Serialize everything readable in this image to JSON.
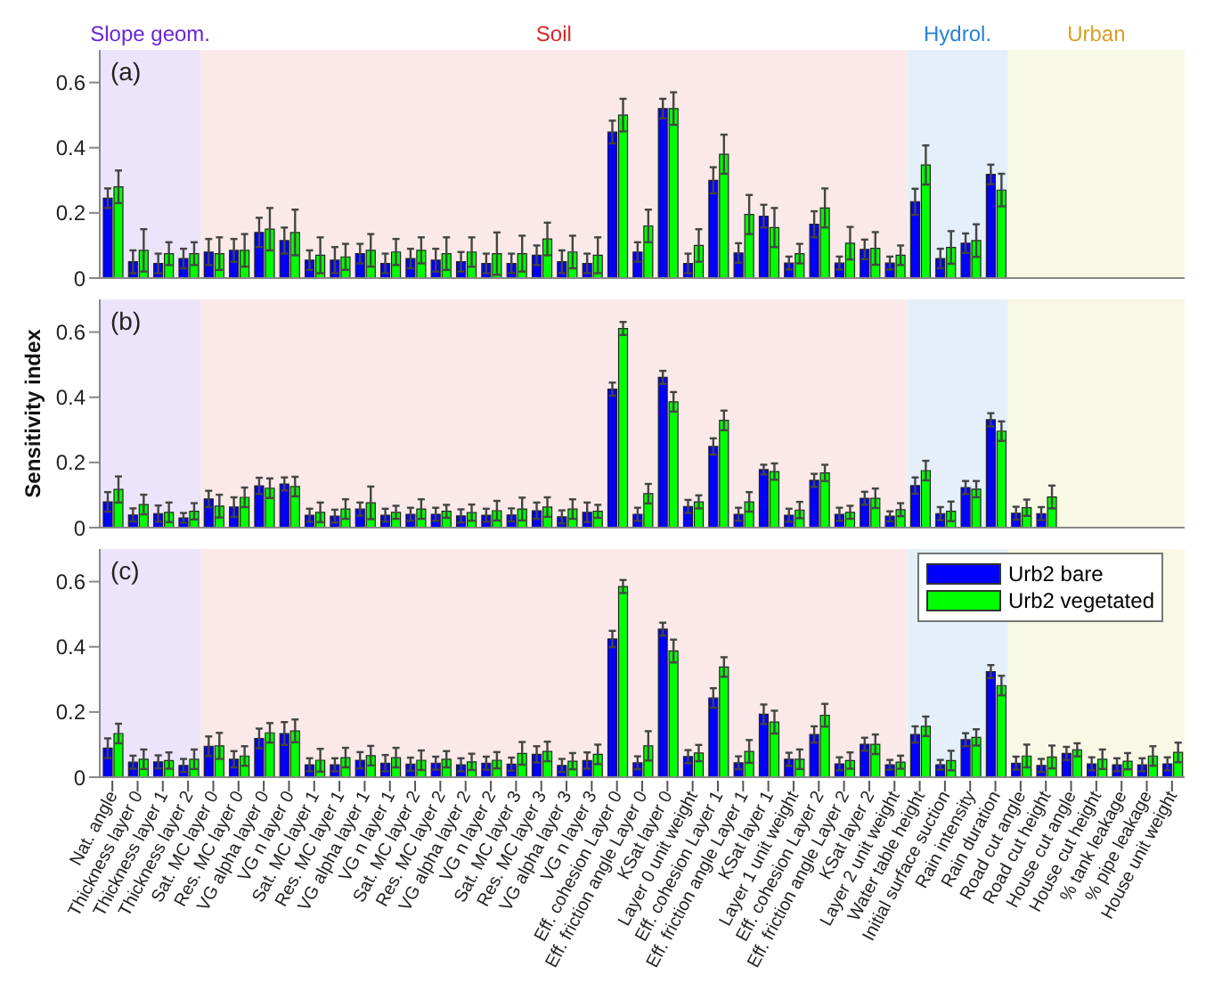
{
  "chart_data": [
    {
      "type": "bar",
      "title": "(a)",
      "categories": [
        "Nat. angle",
        "Thickness layer 0",
        "Thickness layer 1",
        "Thickness layer 2",
        "Sat. MC layer 0",
        "Res. MC layer 0",
        "VG alpha layer 0",
        "VG n layer 0",
        "Sat. MC layer 1",
        "Res. MC layer 1",
        "VG alpha layer 1",
        "VG n layer 1",
        "Sat. MC layer 2",
        "Res. MC layer 2",
        "VG alpha layer 2",
        "VG n layer 2",
        "Sat. MC layer 3",
        "Res. MC layer 3",
        "VG alpha layer 3",
        "VG n layer 3",
        "Eff. cohesion Layer 0",
        "Eff. friction angle Layer 0",
        "KSat layer 0",
        "Layer 0 unit weight",
        "Eff. cohesion Layer 1",
        "Eff. friction angle Layer 1",
        "KSat layer 1",
        "Layer 1 unit weight",
        "Eff. cohesion Layer 2",
        "Eff. friction angle Layer 2",
        "KSat layer 2",
        "Layer 2 unit weight",
        "Water table height",
        "Initial surface suction",
        "Rain intensity",
        "Rain duration",
        "Road cut angle",
        "Road cut height",
        "House cut angle",
        "House cut height",
        "% tank leakage",
        "% pipe leakage",
        "House unit weight"
      ],
      "series": [
        {
          "color": "#0000ff",
          "values": [
            0.245,
            0.05,
            0.045,
            0.06,
            0.08,
            0.085,
            0.14,
            0.115,
            0.055,
            0.055,
            0.075,
            0.045,
            0.06,
            0.055,
            0.05,
            0.045,
            0.045,
            0.07,
            0.05,
            0.045,
            0.448,
            0.08,
            0.52,
            0.045,
            0.3,
            0.077,
            0.19,
            0.046,
            0.165,
            0.046,
            0.088,
            0.046,
            0.234,
            0.06,
            0.107,
            0.318,
            0,
            0,
            0,
            0,
            0,
            0,
            0
          ],
          "errors": [
            0.03,
            0.035,
            0.03,
            0.03,
            0.04,
            0.035,
            0.045,
            0.04,
            0.03,
            0.04,
            0.03,
            0.03,
            0.03,
            0.035,
            0.03,
            0.03,
            0.03,
            0.03,
            0.035,
            0.03,
            0.035,
            0.03,
            0.03,
            0.03,
            0.04,
            0.03,
            0.035,
            0.02,
            0.04,
            0.02,
            0.03,
            0.02,
            0.04,
            0.03,
            0.03,
            0.03,
            null,
            null,
            null,
            null,
            null,
            null,
            null
          ]
        },
        {
          "color": "#00ff00",
          "values": [
            0.28,
            0.085,
            0.075,
            0.075,
            0.075,
            0.085,
            0.15,
            0.14,
            0.07,
            0.065,
            0.085,
            0.08,
            0.085,
            0.075,
            0.08,
            0.075,
            0.075,
            0.12,
            0.08,
            0.07,
            0.5,
            0.16,
            0.52,
            0.1,
            0.38,
            0.195,
            0.155,
            0.075,
            0.215,
            0.107,
            0.091,
            0.07,
            0.347,
            0.094,
            0.115,
            0.27,
            0,
            0,
            0,
            0,
            0,
            0,
            0
          ],
          "errors": [
            0.05,
            0.065,
            0.035,
            0.035,
            0.05,
            0.05,
            0.065,
            0.07,
            0.055,
            0.04,
            0.05,
            0.04,
            0.04,
            0.05,
            0.045,
            0.065,
            0.055,
            0.05,
            0.05,
            0.055,
            0.05,
            0.05,
            0.05,
            0.05,
            0.06,
            0.06,
            0.06,
            0.03,
            0.06,
            0.05,
            0.05,
            0.03,
            0.06,
            0.05,
            0.05,
            0.05,
            null,
            null,
            null,
            null,
            null,
            null,
            null
          ]
        }
      ],
      "bands": [
        {
          "axis": "x",
          "from": "Nat. angle",
          "to": "Thickness layer 2",
          "label": "Slope geom.",
          "color": "#ece4fa"
        },
        {
          "axis": "x",
          "from": "Sat. MC layer 0",
          "to": "Layer 2 unit weight",
          "label": "Soil",
          "color": "#fbe9e9"
        },
        {
          "axis": "x",
          "from": "Water table height",
          "to": "Rain duration",
          "label": "Hydrol.",
          "color": "#e4eff9"
        },
        {
          "axis": "x",
          "from": "Road cut angle",
          "to": "House unit weight",
          "label": "Urban",
          "color": "#f8f8e4"
        }
      ],
      "ylim": [
        0,
        0.7
      ],
      "yticks": [
        0,
        0.2,
        0.4,
        0.6
      ],
      "tick_labels": "y"
    },
    {
      "type": "bar",
      "title": "(b)",
      "ylabel": "Sensitivity index",
      "categories": [
        "Nat. angle",
        "Thickness layer 0",
        "Thickness layer 1",
        "Thickness layer 2",
        "Sat. MC layer 0",
        "Res. MC layer 0",
        "VG alpha layer 0",
        "VG n layer 0",
        "Sat. MC layer 1",
        "Res. MC layer 1",
        "VG alpha layer 1",
        "VG n layer 1",
        "Sat. MC layer 2",
        "Res. MC layer 2",
        "VG alpha layer 2",
        "VG n layer 2",
        "Sat. MC layer 3",
        "Res. MC layer 3",
        "VG alpha layer 3",
        "VG n layer 3",
        "Eff. cohesion Layer 0",
        "Eff. friction angle Layer 0",
        "KSat layer 0",
        "Layer 0 unit weight",
        "Eff. cohesion Layer 1",
        "Eff. friction angle Layer 1",
        "KSat layer 1",
        "Layer 1 unit weight",
        "Eff. cohesion Layer 2",
        "Eff. friction angle Layer 2",
        "KSat layer 2",
        "Layer 2 unit weight",
        "Water table height",
        "Initial surface suction",
        "Rain intensity",
        "Rain duration",
        "Road cut angle",
        "Road cut height",
        "House cut angle",
        "House cut height",
        "% tank leakage",
        "% pipe leakage",
        "House unit weight"
      ],
      "series": [
        {
          "color": "#0000ff",
          "values": [
            0.079,
            0.039,
            0.043,
            0.03,
            0.088,
            0.063,
            0.128,
            0.134,
            0.038,
            0.035,
            0.057,
            0.038,
            0.041,
            0.041,
            0.036,
            0.038,
            0.039,
            0.052,
            0.033,
            0.047,
            0.425,
            0.041,
            0.461,
            0.065,
            0.249,
            0.041,
            0.178,
            0.038,
            0.145,
            0.041,
            0.09,
            0.035,
            0.129,
            0.043,
            0.123,
            0.331,
            0.044,
            0.043,
            0,
            0,
            0,
            0,
            0
          ],
          "errors": [
            0.03,
            0.02,
            0.025,
            0.015,
            0.025,
            0.03,
            0.025,
            0.02,
            0.02,
            0.02,
            0.02,
            0.02,
            0.02,
            0.02,
            0.02,
            0.02,
            0.02,
            0.025,
            0.02,
            0.03,
            0.02,
            0.02,
            0.02,
            0.02,
            0.025,
            0.02,
            0.015,
            0.02,
            0.02,
            0.02,
            0.02,
            0.015,
            0.025,
            0.02,
            0.02,
            0.02,
            0.02,
            0.02,
            null,
            null,
            null,
            null,
            null
          ]
        },
        {
          "color": "#00ff00",
          "values": [
            0.117,
            0.071,
            0.047,
            0.05,
            0.066,
            0.093,
            0.121,
            0.126,
            0.047,
            0.057,
            0.076,
            0.047,
            0.057,
            0.05,
            0.046,
            0.052,
            0.057,
            0.063,
            0.057,
            0.05,
            0.611,
            0.104,
            0.386,
            0.079,
            0.329,
            0.079,
            0.172,
            0.054,
            0.168,
            0.047,
            0.09,
            0.055,
            0.175,
            0.05,
            0.118,
            0.296,
            0.061,
            0.094,
            0,
            0,
            0,
            0,
            0
          ],
          "errors": [
            0.04,
            0.03,
            0.03,
            0.025,
            0.035,
            0.03,
            0.03,
            0.03,
            0.03,
            0.03,
            0.05,
            0.02,
            0.03,
            0.02,
            0.025,
            0.03,
            0.035,
            0.03,
            0.03,
            0.02,
            0.02,
            0.03,
            0.03,
            0.02,
            0.03,
            0.03,
            0.025,
            0.025,
            0.025,
            0.02,
            0.03,
            0.02,
            0.03,
            0.03,
            0.025,
            0.03,
            0.025,
            0.035,
            null,
            null,
            null,
            null,
            null
          ]
        }
      ],
      "bands": [
        {
          "axis": "x",
          "from": "Nat. angle",
          "to": "Thickness layer 2",
          "color": "#ece4fa"
        },
        {
          "axis": "x",
          "from": "Sat. MC layer 0",
          "to": "Layer 2 unit weight",
          "color": "#fbe9e9"
        },
        {
          "axis": "x",
          "from": "Water table height",
          "to": "Rain duration",
          "color": "#e4eff9"
        },
        {
          "axis": "x",
          "from": "Road cut angle",
          "to": "House unit weight",
          "color": "#f8f8e4"
        }
      ],
      "ylim": [
        0,
        0.7
      ],
      "yticks": [
        0,
        0.2,
        0.4,
        0.6
      ],
      "tick_labels": "y"
    },
    {
      "type": "bar",
      "title": "(c)",
      "categories": [
        "Nat. angle",
        "Thickness layer 0",
        "Thickness layer 1",
        "Thickness layer 2",
        "Sat. MC layer 0",
        "Res. MC layer 0",
        "VG alpha layer 0",
        "VG n layer 0",
        "Sat. MC layer 1",
        "Res. MC layer 1",
        "VG alpha layer 1",
        "VG n layer 1",
        "Sat. MC layer 2",
        "Res. MC layer 2",
        "VG alpha layer 2",
        "VG n layer 2",
        "Sat. MC layer 3",
        "Res. MC layer 3",
        "VG alpha layer 3",
        "VG n layer 3",
        "Eff. cohesion Layer 0",
        "Eff. friction angle Layer 0",
        "KSat layer 0",
        "Layer 0 unit weight",
        "Eff. cohesion Layer 1",
        "Eff. friction angle Layer 1",
        "KSat layer 1",
        "Layer 1 unit weight",
        "Eff. cohesion Layer 2",
        "Eff. friction angle Layer 2",
        "KSat layer 2",
        "Layer 2 unit weight",
        "Water table height",
        "Initial surface suction",
        "Rain intensity",
        "Rain duration",
        "Road cut angle",
        "Road cut height",
        "House cut angle",
        "House cut height",
        "% tank leakage",
        "% pipe leakage",
        "House unit weight"
      ],
      "series": [
        {
          "name": "Urb2 bare",
          "color": "#0000ff",
          "values": [
            0.089,
            0.046,
            0.047,
            0.036,
            0.095,
            0.055,
            0.119,
            0.134,
            0.038,
            0.038,
            0.052,
            0.043,
            0.04,
            0.043,
            0.038,
            0.043,
            0.04,
            0.07,
            0.036,
            0.051,
            0.424,
            0.044,
            0.454,
            0.063,
            0.243,
            0.044,
            0.193,
            0.055,
            0.131,
            0.041,
            0.101,
            0.038,
            0.131,
            0.038,
            0.115,
            0.324,
            0.043,
            0.036,
            0.073,
            0.041,
            0.038,
            0.038,
            0.041
          ],
          "errors": [
            0.03,
            0.02,
            0.02,
            0.02,
            0.03,
            0.025,
            0.03,
            0.035,
            0.02,
            0.02,
            0.025,
            0.025,
            0.02,
            0.02,
            0.02,
            0.02,
            0.02,
            0.025,
            0.02,
            0.025,
            0.025,
            0.02,
            0.02,
            0.02,
            0.03,
            0.02,
            0.03,
            0.02,
            0.025,
            0.02,
            0.02,
            0.015,
            0.025,
            0.015,
            0.02,
            0.02,
            0.02,
            0.02,
            0.02,
            0.02,
            0.02,
            0.02,
            0.02
          ]
        },
        {
          "name": "Urb2 vegetated",
          "color": "#00ff00",
          "values": [
            0.134,
            0.055,
            0.051,
            0.055,
            0.096,
            0.065,
            0.136,
            0.142,
            0.052,
            0.06,
            0.066,
            0.06,
            0.052,
            0.055,
            0.047,
            0.052,
            0.073,
            0.079,
            0.049,
            0.07,
            0.585,
            0.096,
            0.387,
            0.074,
            0.338,
            0.079,
            0.169,
            0.055,
            0.19,
            0.051,
            0.101,
            0.046,
            0.156,
            0.051,
            0.122,
            0.281,
            0.065,
            0.062,
            0.084,
            0.055,
            0.049,
            0.065,
            0.076
          ],
          "errors": [
            0.03,
            0.03,
            0.025,
            0.03,
            0.04,
            0.03,
            0.03,
            0.035,
            0.035,
            0.03,
            0.03,
            0.03,
            0.03,
            0.025,
            0.025,
            0.025,
            0.035,
            0.03,
            0.025,
            0.03,
            0.02,
            0.045,
            0.035,
            0.025,
            0.03,
            0.035,
            0.035,
            0.03,
            0.035,
            0.025,
            0.03,
            0.02,
            0.03,
            0.03,
            0.025,
            0.03,
            0.035,
            0.035,
            0.02,
            0.03,
            0.025,
            0.03,
            0.03
          ]
        }
      ],
      "bands": [
        {
          "axis": "x",
          "from": "Nat. angle",
          "to": "Thickness layer 2",
          "color": "#ece4fa"
        },
        {
          "axis": "x",
          "from": "Sat. MC layer 0",
          "to": "Layer 2 unit weight",
          "color": "#fbe9e9"
        },
        {
          "axis": "x",
          "from": "Water table height",
          "to": "Rain duration",
          "color": "#e4eff9"
        },
        {
          "axis": "x",
          "from": "Road cut angle",
          "to": "House unit weight",
          "color": "#f8f8e4"
        }
      ],
      "ylim": [
        0,
        0.7
      ],
      "yticks": [
        0,
        0.2,
        0.4,
        0.6
      ],
      "legend": "top right"
    }
  ]
}
